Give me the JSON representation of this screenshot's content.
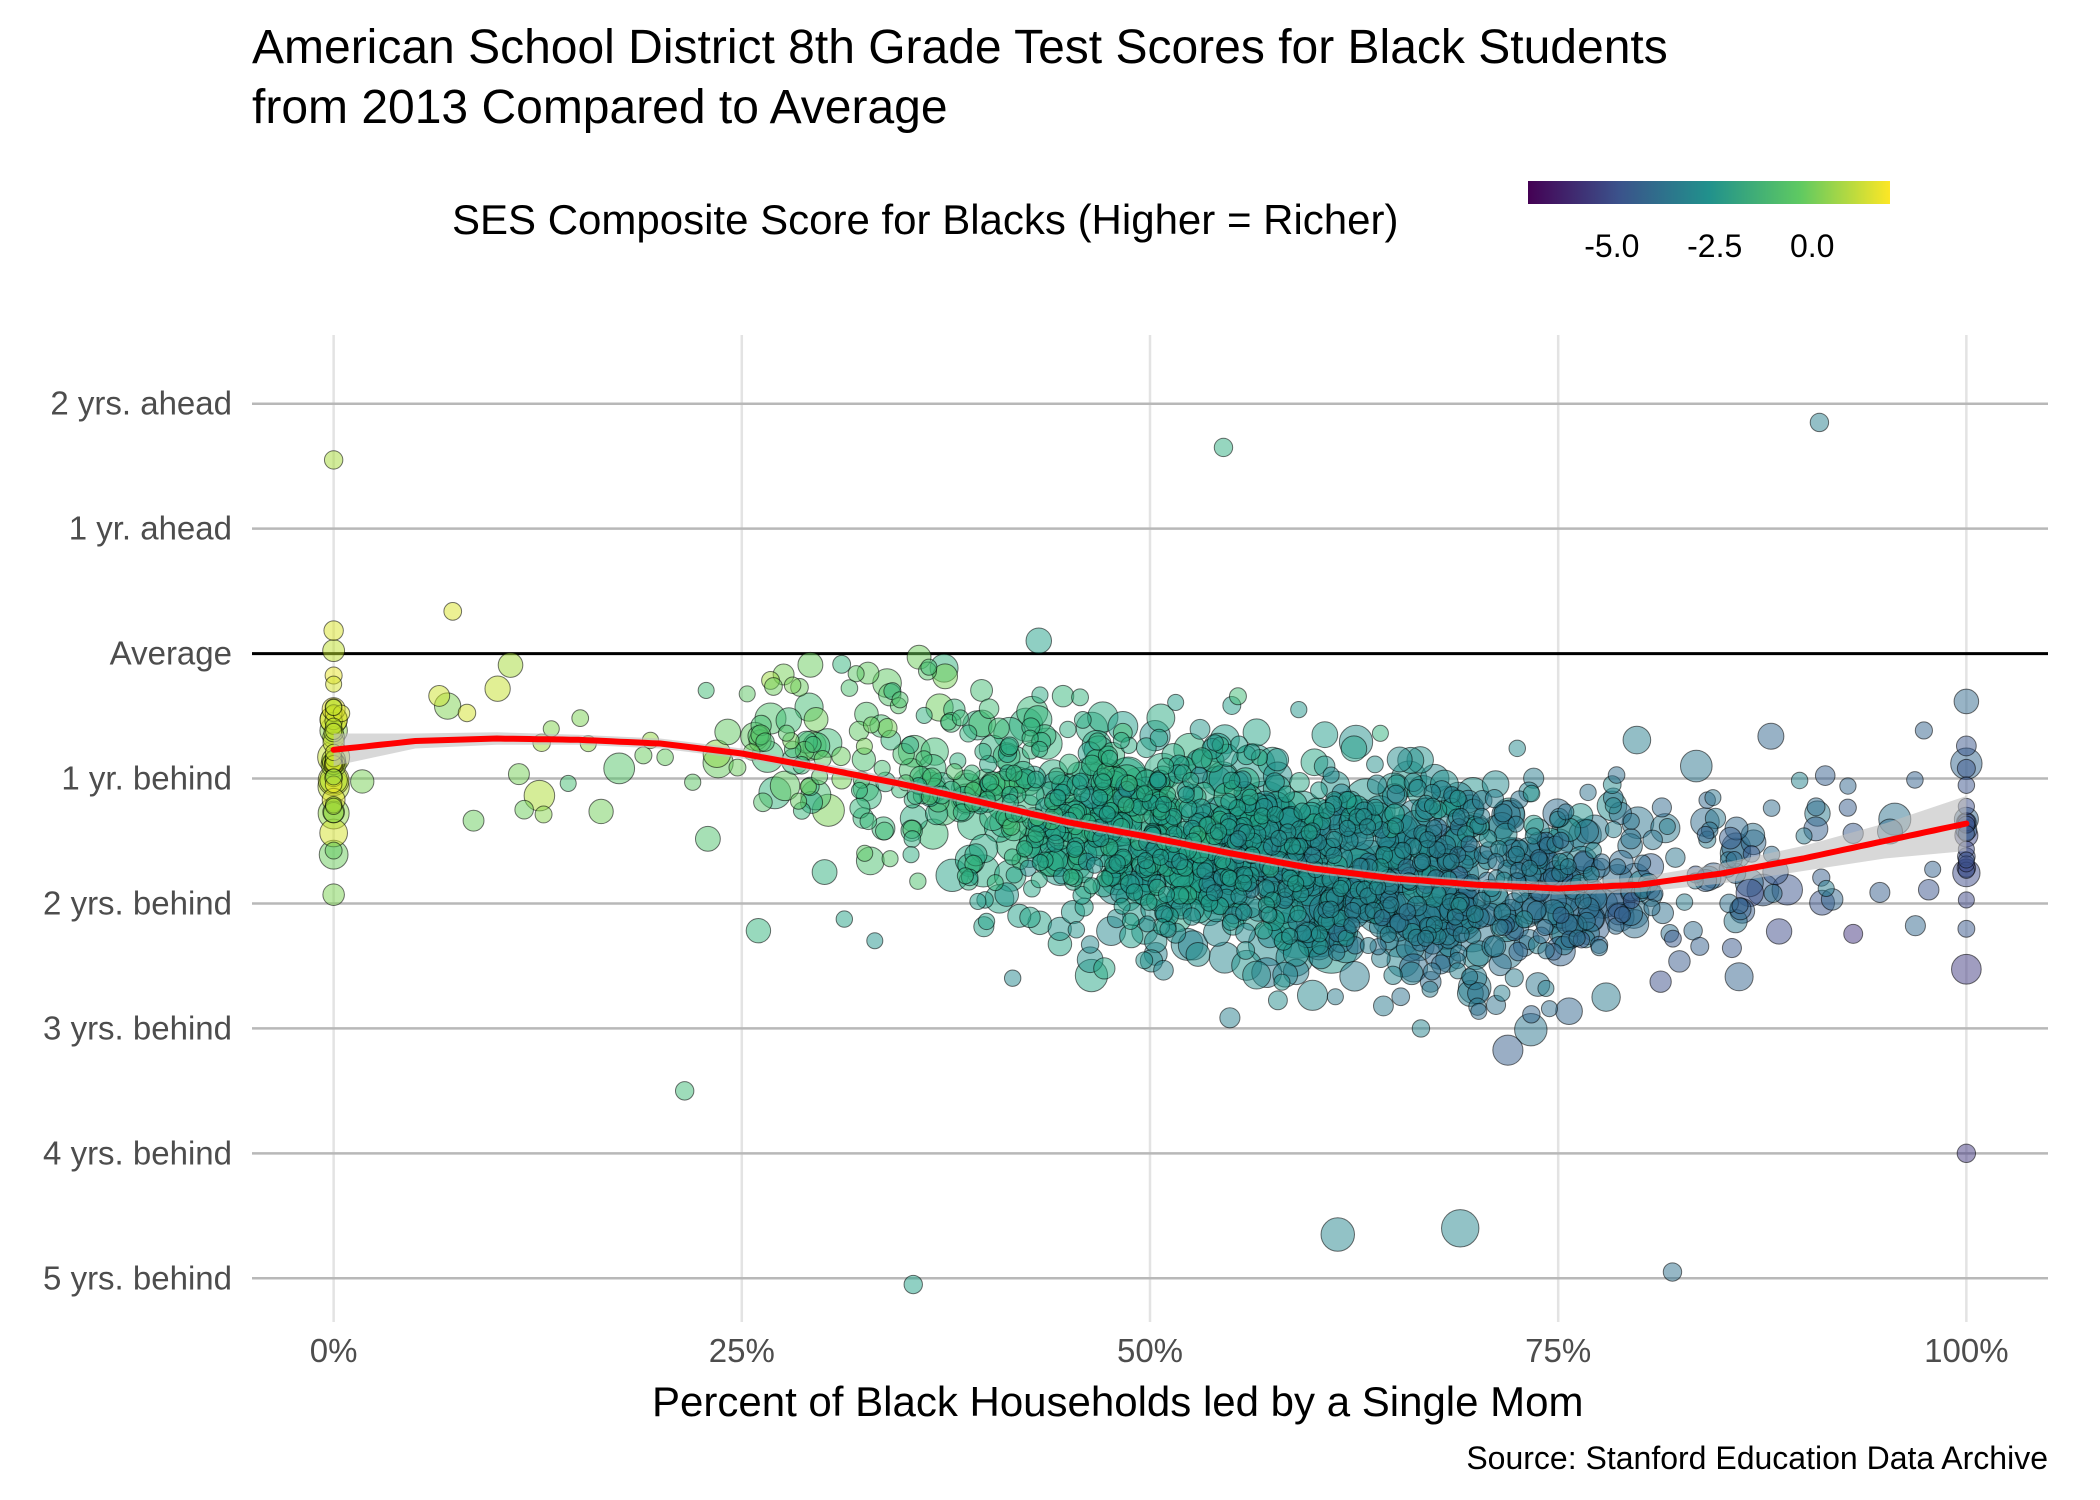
{
  "chart_data": {
    "type": "scatter",
    "title_line1": "American School District 8th Grade Test Scores for Black Students",
    "title_line2": "from 2013 Compared to Average",
    "xlabel": "Percent of Black Households led by a Single Mom",
    "ylabel": "",
    "source": "Source: Stanford Education Data Archive",
    "xlim": [
      -0.05,
      1.05
    ],
    "ylim": [
      -5.35,
      2.55
    ],
    "x_ticks": [
      {
        "value": 0,
        "label": "0%"
      },
      {
        "value": 0.25,
        "label": "25%"
      },
      {
        "value": 0.5,
        "label": "50%"
      },
      {
        "value": 0.75,
        "label": "75%"
      },
      {
        "value": 1,
        "label": "100%"
      }
    ],
    "y_ticks": [
      {
        "value": 2,
        "label": "2 yrs. ahead"
      },
      {
        "value": 1,
        "label": "1 yr. ahead"
      },
      {
        "value": 0,
        "label": "Average"
      },
      {
        "value": -1,
        "label": "1 yr. behind"
      },
      {
        "value": -2,
        "label": "2 yrs. behind"
      },
      {
        "value": -3,
        "label": "3 yrs. behind"
      },
      {
        "value": -4,
        "label": "4 yrs. behind"
      },
      {
        "value": -5,
        "label": "5 yrs. behind"
      }
    ],
    "reference_line": {
      "y": 0,
      "color": "#000000"
    },
    "legend": {
      "title": "SES Composite Score for Blacks (Higher = Richer)",
      "placement": "top",
      "range": [
        -7,
        1.8
      ],
      "ticks": [
        {
          "value": -5,
          "label": "-5.0"
        },
        {
          "value": -2.5,
          "label": "-2.5"
        },
        {
          "value": 0,
          "label": "0.0"
        }
      ],
      "colors": [
        "#440154",
        "#3b528b",
        "#21918c",
        "#5ec962",
        "#fde725"
      ]
    },
    "smooth_line": {
      "color": "#ff0000",
      "band_color": "#bebebe",
      "x": [
        0,
        0.05,
        0.1,
        0.15,
        0.2,
        0.25,
        0.3,
        0.35,
        0.4,
        0.45,
        0.5,
        0.55,
        0.6,
        0.65,
        0.7,
        0.75,
        0.8,
        0.85,
        0.9,
        0.95,
        1.0
      ],
      "y": [
        -0.77,
        -0.7,
        -0.68,
        -0.69,
        -0.72,
        -0.8,
        -0.92,
        -1.05,
        -1.2,
        -1.35,
        -1.47,
        -1.6,
        -1.72,
        -1.8,
        -1.85,
        -1.88,
        -1.85,
        -1.76,
        -1.64,
        -1.5,
        -1.36
      ],
      "band": [
        0.13,
        0.06,
        0.05,
        0.04,
        0.04,
        0.04,
        0.04,
        0.04,
        0.04,
        0.04,
        0.04,
        0.04,
        0.04,
        0.04,
        0.04,
        0.05,
        0.06,
        0.08,
        0.1,
        0.14,
        0.22
      ]
    },
    "point_colors": {
      "low": "#440154",
      "mid": "#21918c",
      "high": "#fde725"
    },
    "points_outlier": [
      {
        "x": 0.91,
        "y": 1.85,
        "ses": -3.2,
        "n": 1
      },
      {
        "x": 0.545,
        "y": 1.65,
        "ses": -1.5,
        "n": 1
      },
      {
        "x": 0.615,
        "y": -4.65,
        "ses": -3.0,
        "n": 6
      },
      {
        "x": 0.69,
        "y": -4.6,
        "ses": -3.0,
        "n": 8
      },
      {
        "x": 0.355,
        "y": -5.05,
        "ses": -2.0,
        "n": 1
      },
      {
        "x": 0.82,
        "y": -4.95,
        "ses": -3.8,
        "n": 1
      },
      {
        "x": 0.215,
        "y": -3.5,
        "ses": -1.0,
        "n": 1
      },
      {
        "x": 1.0,
        "y": -4.0,
        "ses": -5.5,
        "n": 1
      },
      {
        "x": 0.0,
        "y": 1.55,
        "ses": 0.6,
        "n": 1
      }
    ]
  }
}
